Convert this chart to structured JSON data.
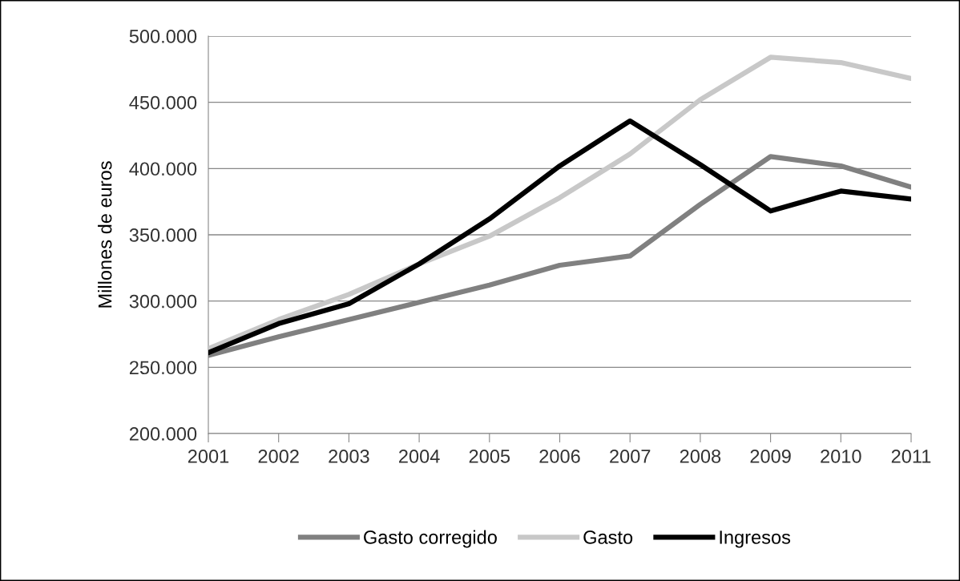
{
  "chart_data": {
    "type": "line",
    "ylabel": "Millones de euros",
    "categories": [
      "2001",
      "2002",
      "2003",
      "2004",
      "2005",
      "2006",
      "2007",
      "2008",
      "2009",
      "2010",
      "2011"
    ],
    "series": [
      {
        "name": "Gasto corregido",
        "color": "#808080",
        "values": [
          259000,
          273000,
          286000,
          299000,
          312000,
          327000,
          334000,
          373000,
          409000,
          402000,
          386000
        ]
      },
      {
        "name": "Gasto",
        "color": "#c8c8c8",
        "values": [
          264000,
          286000,
          305000,
          328000,
          349000,
          378000,
          411000,
          452000,
          484000,
          480000,
          468000
        ]
      },
      {
        "name": "Ingresos",
        "color": "#000000",
        "values": [
          261000,
          283000,
          298000,
          328000,
          362000,
          402000,
          436000,
          403000,
          368000,
          383000,
          377000
        ]
      }
    ],
    "ylim": [
      200000,
      500000
    ],
    "yticks": [
      {
        "value": 200000,
        "label": "200.000"
      },
      {
        "value": 250000,
        "label": "250.000"
      },
      {
        "value": 300000,
        "label": "300.000"
      },
      {
        "value": 350000,
        "label": "350.000"
      },
      {
        "value": 400000,
        "label": "400.000"
      },
      {
        "value": 450000,
        "label": "450.000"
      },
      {
        "value": 500000,
        "label": "500.000"
      }
    ],
    "grid": "y",
    "legend": "bottom",
    "marker": "none",
    "line_style": "solid"
  }
}
